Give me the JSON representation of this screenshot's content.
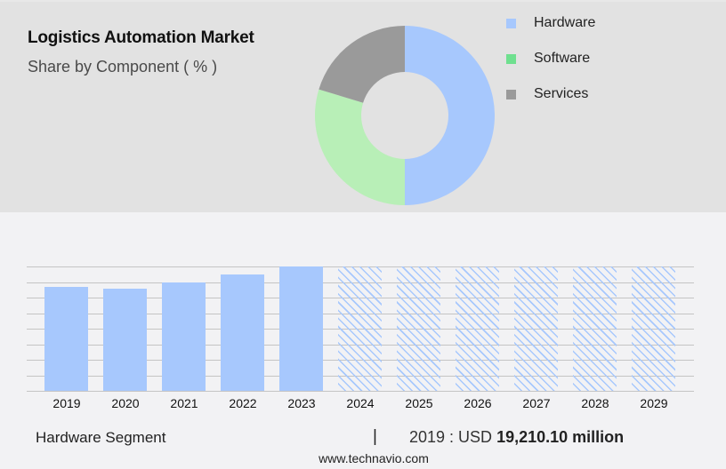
{
  "header": {
    "title": "Logistics Automation Market",
    "subtitle": "Share by Component ( % )"
  },
  "legend": [
    {
      "label": "Hardware",
      "color": "#a7c8fd"
    },
    {
      "label": "Software",
      "color": "#6fe08f"
    },
    {
      "label": "Services",
      "color": "#9a9a9a"
    }
  ],
  "footer": {
    "segment_label": "Hardware Segment",
    "separator": "|",
    "year_prefix": "2019 : USD ",
    "value": "19,210.10 million",
    "url": "www.technavio.com"
  },
  "chart_data": [
    {
      "type": "pie",
      "title": "Logistics Automation Market",
      "subtitle": "Share by Component ( % )",
      "donut": true,
      "categories": [
        "Hardware",
        "Software",
        "Services"
      ],
      "values": [
        50.0,
        29.7,
        20.3
      ],
      "colors": [
        "#a7c8fd",
        "#b8efb7",
        "#9a9a9a"
      ],
      "legend_position": "right"
    },
    {
      "type": "bar",
      "title": "Hardware Segment",
      "categories": [
        "2019",
        "2020",
        "2021",
        "2022",
        "2023",
        "2024",
        "2025",
        "2026",
        "2027",
        "2028",
        "2029"
      ],
      "values": [
        19210.1,
        18870,
        20000,
        21400,
        22900,
        null,
        null,
        null,
        null,
        null,
        null
      ],
      "forecast": [
        false,
        false,
        false,
        false,
        false,
        true,
        true,
        true,
        true,
        true,
        true
      ],
      "annotation": "2019 : USD 19,210.10 million",
      "xlabel": "",
      "ylabel": "",
      "grid": true,
      "yaxis_labels_visible": false,
      "colors": {
        "actual": "#a7c8fd",
        "forecast_hatch": "#a7c8fd"
      }
    }
  ]
}
